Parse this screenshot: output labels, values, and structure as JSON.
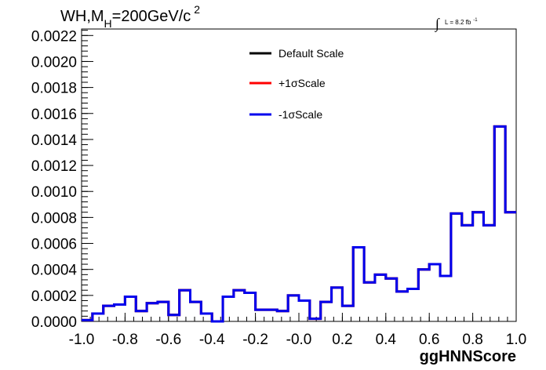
{
  "chart_data": {
    "type": "line",
    "title": {
      "prefix": "WH,M",
      "subscript": "H",
      "suffix": "=200GeV/c",
      "superscript": "2"
    },
    "annotation": {
      "integral_symbol": "∫",
      "text": "L = 8.2 fb",
      "superscript": "-1"
    },
    "xlabel": "ggHNNScore",
    "ylabel": "",
    "xlim": [
      -1.0,
      1.0
    ],
    "ylim": [
      0,
      0.00225
    ],
    "x_ticks": [
      "-1.0",
      "-0.8",
      "-0.6",
      "-0.4",
      "-0.2",
      "-0.0",
      "0.2",
      "0.4",
      "0.6",
      "0.8",
      "1.0"
    ],
    "x_tick_values": [
      -1.0,
      -0.8,
      -0.6,
      -0.4,
      -0.2,
      0.0,
      0.2,
      0.4,
      0.6,
      0.8,
      1.0
    ],
    "y_ticks": [
      "0.0000",
      "0.0002",
      "0.0004",
      "0.0006",
      "0.0008",
      "0.0010",
      "0.0012",
      "0.0014",
      "0.0016",
      "0.0018",
      "0.0020",
      "0.0022"
    ],
    "y_tick_values": [
      0,
      0.0002,
      0.0004,
      0.0006,
      0.0008,
      0.001,
      0.0012,
      0.0014,
      0.0016,
      0.0018,
      0.002,
      0.0022
    ],
    "bin_edges": [
      -1.0,
      -0.95,
      -0.9,
      -0.85,
      -0.8,
      -0.75,
      -0.7,
      -0.65,
      -0.6,
      -0.55,
      -0.5,
      -0.45,
      -0.4,
      -0.35,
      -0.3,
      -0.25,
      -0.2,
      -0.15,
      -0.1,
      -0.05,
      0.0,
      0.05,
      0.1,
      0.15,
      0.2,
      0.25,
      0.3,
      0.35,
      0.4,
      0.45,
      0.5,
      0.55,
      0.6,
      0.65,
      0.7,
      0.75,
      0.8,
      0.85,
      0.9,
      0.95,
      1.0
    ],
    "legend": {
      "placement": "top-center"
    },
    "series": [
      {
        "name": "Default Scale",
        "color": "#000000",
        "values": [
          1e-05,
          6e-05,
          0.00012,
          0.00013,
          0.00019,
          8e-05,
          0.00014,
          0.00015,
          5e-05,
          0.00024,
          0.00015,
          6e-05,
          0.0,
          0.00019,
          0.00024,
          0.00022,
          9e-05,
          9e-05,
          8e-05,
          0.0002,
          0.00016,
          2e-05,
          0.00015,
          0.00026,
          0.00012,
          0.00057,
          0.0003,
          0.00036,
          0.00033,
          0.00023,
          0.00025,
          0.0004,
          0.00044,
          0.00035,
          0.00083,
          0.00074,
          0.00084,
          0.00074,
          0.0015,
          0.00084
        ]
      },
      {
        "name": "+1σScale",
        "color": "#ff0000",
        "values": [
          1e-05,
          6e-05,
          0.00012,
          0.00013,
          0.00019,
          8e-05,
          0.00014,
          0.00015,
          5e-05,
          0.00024,
          0.00015,
          6e-05,
          0.0,
          0.00019,
          0.00024,
          0.00022,
          9e-05,
          9e-05,
          8e-05,
          0.0002,
          0.00016,
          2e-05,
          0.00015,
          0.00026,
          0.00012,
          0.00057,
          0.0003,
          0.00036,
          0.00033,
          0.00023,
          0.00025,
          0.0004,
          0.00044,
          0.00035,
          0.00083,
          0.00074,
          0.00084,
          0.00074,
          0.0015,
          0.00084
        ]
      },
      {
        "name": "-1σScale",
        "color": "#0000ee",
        "values": [
          1e-05,
          6e-05,
          0.00012,
          0.00013,
          0.00019,
          8e-05,
          0.00014,
          0.00015,
          5e-05,
          0.00024,
          0.00015,
          6e-05,
          0.0,
          0.00019,
          0.00024,
          0.00022,
          9e-05,
          9e-05,
          8e-05,
          0.0002,
          0.00016,
          2e-05,
          0.00015,
          0.00026,
          0.00012,
          0.00057,
          0.0003,
          0.00036,
          0.00033,
          0.00023,
          0.00025,
          0.0004,
          0.00044,
          0.00035,
          0.00083,
          0.00074,
          0.00084,
          0.00074,
          0.0015,
          0.00084
        ]
      }
    ]
  }
}
